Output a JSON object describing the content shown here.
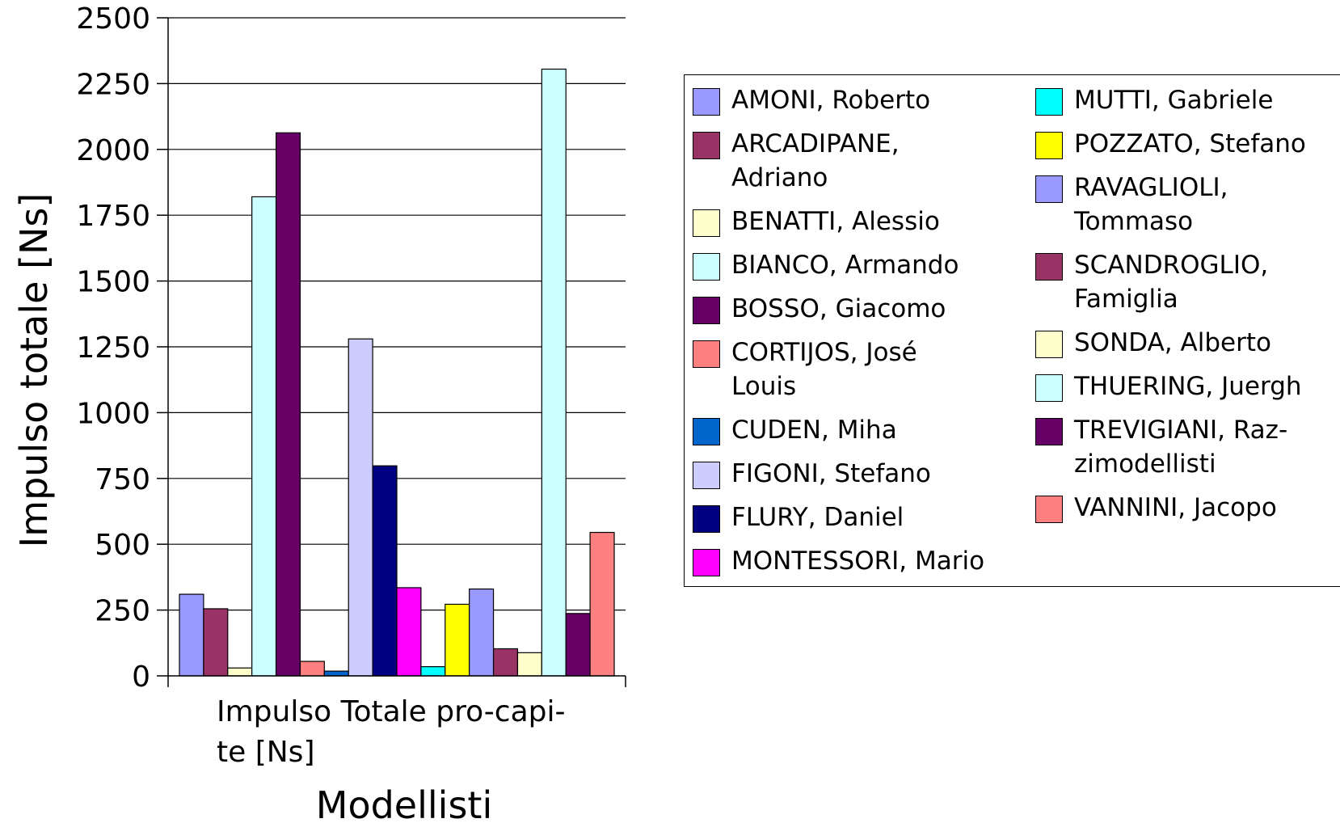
{
  "chart_data": {
    "type": "bar",
    "categories": [
      "Impulso Totale pro-capite [Ns]"
    ],
    "ylabel": "Impulso totale [Ns]",
    "xlabel": "Modellisti",
    "ylim": [
      0,
      2500
    ],
    "yticks": [
      0,
      250,
      500,
      750,
      1000,
      1250,
      1500,
      1750,
      2000,
      2250,
      2500
    ],
    "grid": true,
    "legend_position": "right",
    "series": [
      {
        "name": "AMONI, Roberto",
        "values": [
          310
        ],
        "color": "#9999ff"
      },
      {
        "name": "ARCADIPANE, Adriano",
        "values": [
          255
        ],
        "color": "#993366"
      },
      {
        "name": "BENATTI, Alessio",
        "values": [
          30
        ],
        "color": "#ffffcc"
      },
      {
        "name": "BIANCO, Armando",
        "values": [
          1820
        ],
        "color": "#ccffff"
      },
      {
        "name": "BOSSO, Giacomo",
        "values": [
          2063
        ],
        "color": "#660066"
      },
      {
        "name": "CORTIJOS, José Louis",
        "values": [
          55
        ],
        "color": "#ff8080"
      },
      {
        "name": "CUDEN, Miha",
        "values": [
          18
        ],
        "color": "#0066cc"
      },
      {
        "name": "FIGONI, Stefano",
        "values": [
          1280
        ],
        "color": "#ccccff"
      },
      {
        "name": "FLURY, Daniel",
        "values": [
          798
        ],
        "color": "#000080"
      },
      {
        "name": "MONTESSORI, Mario",
        "values": [
          335
        ],
        "color": "#ff00ff"
      },
      {
        "name": "MUTTI, Gabriele",
        "values": [
          35
        ],
        "color": "#00ffff"
      },
      {
        "name": "POZZATO, Stefano",
        "values": [
          272
        ],
        "color": "#ffff00"
      },
      {
        "name": "RAVAGLIOLI, Tommaso",
        "values": [
          330
        ],
        "color": "#9999ff"
      },
      {
        "name": "SCANDROGLIO, Famiglia",
        "values": [
          103
        ],
        "color": "#993366"
      },
      {
        "name": "SONDA, Alberto",
        "values": [
          88
        ],
        "color": "#ffffcc"
      },
      {
        "name": "THUERING, Juergh",
        "values": [
          2305
        ],
        "color": "#ccffff"
      },
      {
        "name": "TREVIGIANI, Razzimodellisti",
        "values": [
          237
        ],
        "color": "#660066"
      },
      {
        "name": "VANNINI, Jacopo",
        "values": [
          545
        ],
        "color": "#ff8080"
      }
    ]
  },
  "category_label_lines": [
    "Impulso Totale pro-capi-",
    "te [Ns]"
  ],
  "legend": {
    "columns": [
      [
        {
          "series": 0,
          "lines": [
            "AMONI, Roberto"
          ]
        },
        {
          "series": 1,
          "lines": [
            "ARCADIPANE,",
            "Adriano"
          ]
        },
        {
          "series": 2,
          "lines": [
            "BENATTI, Alessio"
          ]
        },
        {
          "series": 3,
          "lines": [
            "BIANCO, Armando"
          ]
        },
        {
          "series": 4,
          "lines": [
            "BOSSO, Giacomo"
          ]
        },
        {
          "series": 5,
          "lines": [
            "CORTIJOS, José",
            "Louis"
          ]
        },
        {
          "series": 6,
          "lines": [
            "CUDEN, Miha"
          ]
        },
        {
          "series": 7,
          "lines": [
            "FIGONI, Stefano"
          ]
        },
        {
          "series": 8,
          "lines": [
            "FLURY, Daniel"
          ]
        },
        {
          "series": 9,
          "lines": [
            "MONTESSORI, Mario"
          ]
        }
      ],
      [
        {
          "series": 10,
          "lines": [
            "MUTTI, Gabriele"
          ]
        },
        {
          "series": 11,
          "lines": [
            "POZZATO, Stefano"
          ]
        },
        {
          "series": 12,
          "lines": [
            "RAVAGLIOLI,",
            "Tommaso"
          ]
        },
        {
          "series": 13,
          "lines": [
            "SCANDROGLIO,",
            "Famiglia"
          ]
        },
        {
          "series": 14,
          "lines": [
            "SONDA, Alberto"
          ]
        },
        {
          "series": 15,
          "lines": [
            "THUERING, Juergh"
          ]
        },
        {
          "series": 16,
          "lines": [
            "TREVIGIANI, Raz-",
            "zimodellisti"
          ]
        },
        {
          "series": 17,
          "lines": [
            "VANNINI, Jacopo"
          ]
        }
      ]
    ]
  }
}
